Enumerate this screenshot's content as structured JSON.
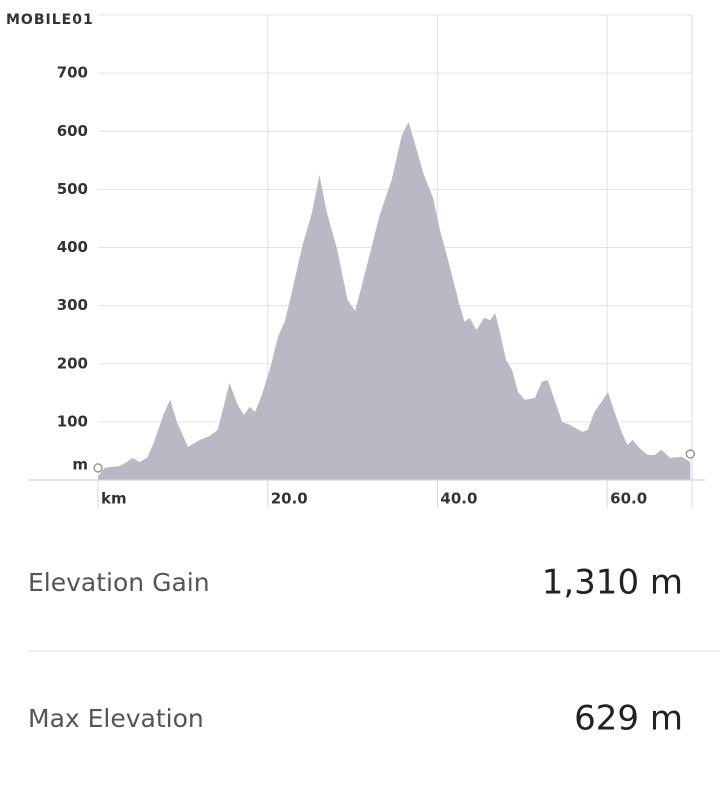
{
  "watermark": "MOBILE01",
  "chart_data": {
    "type": "area",
    "color": "#b9b8c5",
    "grid": true,
    "x": [
      0,
      0.8,
      2.6,
      4.1,
      4.9,
      5.8,
      6.7,
      7.7,
      8.5,
      9.3,
      10.6,
      12.0,
      13.2,
      14.1,
      15.0,
      15.5,
      16.4,
      17.2,
      17.9,
      18.5,
      19.3,
      20.3,
      21.2,
      22.0,
      22.9,
      24.1,
      25.2,
      26.1,
      26.9,
      28.2,
      29.4,
      30.3,
      31.1,
      32.0,
      33.2,
      34.6,
      35.8,
      36.6,
      37.5,
      38.4,
      39.5,
      40.3,
      41.5,
      42.6,
      43.2,
      43.8,
      44.6,
      45.5,
      46.2,
      46.8,
      47.3,
      48.1,
      48.8,
      49.5,
      50.3,
      51.5,
      52.3,
      53.0,
      53.8,
      54.7,
      55.6,
      56.3,
      57.1,
      57.7,
      58.5,
      59.5,
      60.1,
      60.8,
      61.7,
      62.4,
      63.0,
      63.8,
      64.8,
      65.6,
      66.4,
      67.4,
      68.8,
      69.8
    ],
    "values": [
      7,
      21,
      24,
      38,
      31,
      38,
      69,
      112,
      138,
      100,
      57,
      69,
      76,
      86,
      138,
      167,
      131,
      112,
      126,
      117,
      146,
      193,
      246,
      272,
      327,
      404,
      459,
      525,
      464,
      396,
      310,
      291,
      335,
      387,
      456,
      516,
      593,
      616,
      571,
      525,
      485,
      430,
      365,
      301,
      272,
      279,
      258,
      279,
      275,
      287,
      258,
      206,
      189,
      151,
      138,
      141,
      169,
      172,
      138,
      100,
      95,
      89,
      83,
      86,
      117,
      138,
      151,
      120,
      83,
      60,
      69,
      55,
      43,
      43,
      52,
      38,
      40,
      31
    ],
    "xlim": [
      0,
      70
    ],
    "ylim": [
      0,
      800
    ],
    "xticks": [
      {
        "value": 0,
        "label": "km"
      },
      {
        "value": 20,
        "label": "20.0"
      },
      {
        "value": 40,
        "label": "40.0"
      },
      {
        "value": 60,
        "label": "60.0"
      }
    ],
    "yticks": [
      {
        "value": 0,
        "label": "m"
      },
      100,
      200,
      300,
      400,
      500,
      600,
      700
    ]
  },
  "stats": [
    {
      "label": "Elevation Gain",
      "value": "1,310 m"
    },
    {
      "label": "Max Elevation",
      "value": "629 m"
    }
  ]
}
